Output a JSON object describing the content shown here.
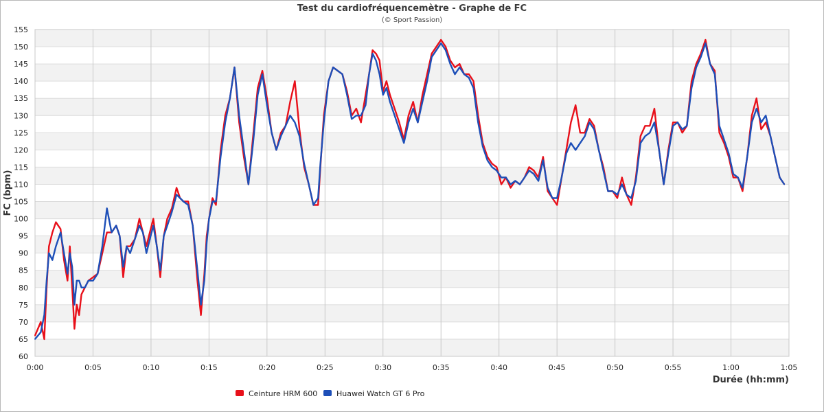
{
  "chart_data": {
    "type": "line",
    "title": "Test du cardiofréquencemètre - Graphe de FC",
    "subtitle": "(© Sport Passion)",
    "xlabel": "Durée (hh:mm)",
    "ylabel": "FC (bpm)",
    "xlim": [
      0,
      65
    ],
    "ylim": [
      60,
      155
    ],
    "x_ticks": [
      "0:00",
      "0:05",
      "0:10",
      "0:15",
      "0:20",
      "0:25",
      "0:30",
      "0:35",
      "0:40",
      "0:45",
      "0:50",
      "0:55",
      "1:00",
      "1:05"
    ],
    "y_ticks": [
      60,
      65,
      70,
      75,
      80,
      85,
      90,
      95,
      100,
      105,
      110,
      115,
      120,
      125,
      130,
      135,
      140,
      145,
      150,
      155
    ],
    "grid": true,
    "legend_position": "bottom-left",
    "series": [
      {
        "name": "Ceinture HRM 600",
        "color": "#e8101a",
        "x": [
          0,
          0.5,
          0.8,
          1.0,
          1.2,
          1.5,
          1.8,
          2.2,
          2.5,
          2.8,
          3.0,
          3.2,
          3.4,
          3.6,
          3.8,
          4.0,
          4.3,
          4.6,
          5.0,
          5.4,
          5.8,
          6.2,
          6.6,
          7.0,
          7.3,
          7.6,
          7.9,
          8.2,
          8.6,
          9.0,
          9.3,
          9.6,
          9.9,
          10.2,
          10.5,
          10.8,
          11.1,
          11.4,
          11.8,
          12.2,
          12.5,
          12.8,
          13.2,
          13.6,
          14.0,
          14.3,
          14.6,
          14.8,
          15.0,
          15.3,
          15.6,
          16.0,
          16.4,
          16.8,
          17.2,
          17.6,
          18.0,
          18.4,
          18.8,
          19.2,
          19.6,
          20.0,
          20.4,
          20.8,
          21.2,
          21.6,
          22.0,
          22.4,
          22.8,
          23.2,
          23.6,
          24.0,
          24.4,
          24.6,
          24.9,
          25.3,
          25.7,
          26.1,
          26.5,
          26.9,
          27.3,
          27.7,
          28.1,
          28.5,
          28.8,
          29.1,
          29.4,
          29.7,
          30.0,
          30.3,
          30.6,
          31.0,
          31.4,
          31.8,
          32.2,
          32.6,
          33.0,
          33.4,
          33.8,
          34.2,
          34.6,
          35.0,
          35.4,
          35.8,
          36.2,
          36.6,
          37.0,
          37.4,
          37.8,
          38.2,
          38.6,
          39.0,
          39.4,
          39.8,
          40.2,
          40.6,
          41.0,
          41.4,
          41.8,
          42.2,
          42.6,
          43.0,
          43.4,
          43.8,
          44.2,
          44.6,
          45.0,
          45.4,
          45.8,
          46.2,
          46.6,
          47.0,
          47.4,
          47.8,
          48.2,
          48.6,
          49.0,
          49.4,
          49.8,
          50.2,
          50.6,
          51.0,
          51.4,
          51.8,
          52.2,
          52.6,
          53.0,
          53.4,
          53.8,
          54.2,
          54.6,
          55.0,
          55.4,
          55.8,
          56.2,
          56.6,
          57.0,
          57.4,
          57.8,
          58.2,
          58.6,
          59.0,
          59.4,
          59.8,
          60.2,
          60.6,
          61.0,
          61.4,
          61.8,
          62.2,
          62.6,
          63.0,
          63.4,
          63.8,
          64.2,
          64.6
        ],
        "values": [
          66,
          70,
          65,
          80,
          92,
          96,
          99,
          97,
          88,
          82,
          92,
          80,
          68,
          75,
          72,
          78,
          80,
          82,
          83,
          84,
          90,
          96,
          96,
          98,
          95,
          83,
          92,
          92,
          94,
          100,
          96,
          92,
          96,
          100,
          92,
          83,
          95,
          100,
          103,
          109,
          106,
          105,
          105,
          98,
          82,
          72,
          84,
          95,
          100,
          106,
          104,
          120,
          130,
          135,
          144,
          128,
          118,
          110,
          124,
          138,
          143,
          135,
          125,
          120,
          125,
          127,
          134,
          140,
          126,
          115,
          110,
          104,
          104,
          115,
          130,
          140,
          144,
          143,
          142,
          137,
          130,
          132,
          128,
          136,
          142,
          149,
          148,
          146,
          137,
          140,
          136,
          132,
          128,
          123,
          130,
          134,
          128,
          136,
          142,
          148,
          150,
          152,
          150,
          146,
          144,
          145,
          142,
          142,
          140,
          130,
          122,
          118,
          116,
          115,
          110,
          112,
          109,
          111,
          110,
          112,
          115,
          114,
          112,
          118,
          108,
          106,
          104,
          112,
          120,
          128,
          133,
          125,
          125,
          129,
          127,
          120,
          115,
          108,
          108,
          106,
          112,
          107,
          104,
          112,
          124,
          127,
          127,
          132,
          120,
          110,
          120,
          128,
          128,
          125,
          127,
          140,
          145,
          148,
          152,
          145,
          143,
          125,
          122,
          118,
          112,
          112,
          108,
          118,
          130,
          135,
          126,
          128,
          124,
          118,
          112,
          110
        ],
        "legend_label": "Ceinture HRM 600"
      },
      {
        "name": "Huawei Watch GT 6 Pro",
        "color": "#1d4fb8",
        "x": [
          0,
          0.5,
          0.8,
          1.0,
          1.2,
          1.5,
          1.8,
          2.2,
          2.5,
          2.8,
          3.0,
          3.2,
          3.4,
          3.6,
          3.8,
          4.0,
          4.3,
          4.6,
          5.0,
          5.4,
          5.8,
          6.2,
          6.6,
          7.0,
          7.3,
          7.6,
          7.9,
          8.2,
          8.6,
          9.0,
          9.3,
          9.6,
          9.9,
          10.2,
          10.5,
          10.8,
          11.1,
          11.4,
          11.8,
          12.2,
          12.5,
          12.8,
          13.2,
          13.6,
          14.0,
          14.3,
          14.6,
          14.8,
          15.0,
          15.3,
          15.6,
          16.0,
          16.4,
          16.8,
          17.2,
          17.6,
          18.0,
          18.4,
          18.8,
          19.2,
          19.6,
          20.0,
          20.4,
          20.8,
          21.2,
          21.6,
          22.0,
          22.4,
          22.8,
          23.2,
          23.6,
          24.0,
          24.4,
          24.6,
          24.9,
          25.3,
          25.7,
          26.1,
          26.5,
          26.9,
          27.3,
          27.7,
          28.1,
          28.5,
          28.8,
          29.1,
          29.4,
          29.7,
          30.0,
          30.3,
          30.6,
          31.0,
          31.4,
          31.8,
          32.2,
          32.6,
          33.0,
          33.4,
          33.8,
          34.2,
          34.6,
          35.0,
          35.4,
          35.8,
          36.2,
          36.6,
          37.0,
          37.4,
          37.8,
          38.2,
          38.6,
          39.0,
          39.4,
          39.8,
          40.2,
          40.6,
          41.0,
          41.4,
          41.8,
          42.2,
          42.6,
          43.0,
          43.4,
          43.8,
          44.2,
          44.6,
          45.0,
          45.4,
          45.8,
          46.2,
          46.6,
          47.0,
          47.4,
          47.8,
          48.2,
          48.6,
          49.0,
          49.4,
          49.8,
          50.2,
          50.6,
          51.0,
          51.4,
          51.8,
          52.2,
          52.6,
          53.0,
          53.4,
          53.8,
          54.2,
          54.6,
          55.0,
          55.4,
          55.8,
          56.2,
          56.6,
          57.0,
          57.4,
          57.8,
          58.2,
          58.6,
          59.0,
          59.4,
          59.8,
          60.2,
          60.6,
          61.0,
          61.4,
          61.8,
          62.2,
          62.6,
          63.0,
          63.4,
          63.8,
          64.2,
          64.6
        ],
        "values": [
          65,
          67,
          72,
          82,
          90,
          88,
          92,
          96,
          90,
          84,
          90,
          86,
          75,
          82,
          82,
          80,
          80,
          82,
          82,
          84,
          92,
          103,
          96,
          98,
          95,
          86,
          92,
          90,
          94,
          98,
          96,
          90,
          94,
          98,
          92,
          85,
          95,
          98,
          102,
          107,
          106,
          105,
          104,
          98,
          85,
          75,
          82,
          93,
          100,
          105,
          105,
          118,
          128,
          135,
          144,
          130,
          120,
          110,
          122,
          136,
          142,
          133,
          125,
          120,
          124,
          127,
          130,
          128,
          124,
          116,
          110,
          104,
          106,
          116,
          128,
          140,
          144,
          143,
          142,
          136,
          129,
          130,
          130,
          133,
          142,
          148,
          146,
          142,
          136,
          138,
          134,
          130,
          126,
          122,
          128,
          132,
          128,
          134,
          140,
          147,
          149,
          151,
          149,
          145,
          142,
          144,
          142,
          141,
          138,
          128,
          121,
          117,
          115,
          114,
          112,
          112,
          110,
          111,
          110,
          112,
          114,
          113,
          111,
          117,
          109,
          106,
          106,
          112,
          119,
          122,
          120,
          122,
          124,
          128,
          126,
          120,
          114,
          108,
          108,
          107,
          110,
          107,
          106,
          111,
          122,
          124,
          125,
          128,
          120,
          110,
          119,
          127,
          128,
          126,
          127,
          138,
          144,
          147,
          151,
          145,
          142,
          127,
          123,
          119,
          113,
          112,
          109,
          118,
          128,
          132,
          128,
          130,
          124,
          118,
          112,
          110
        ],
        "legend_label": "Huawei Watch GT 6 Pro"
      }
    ]
  }
}
